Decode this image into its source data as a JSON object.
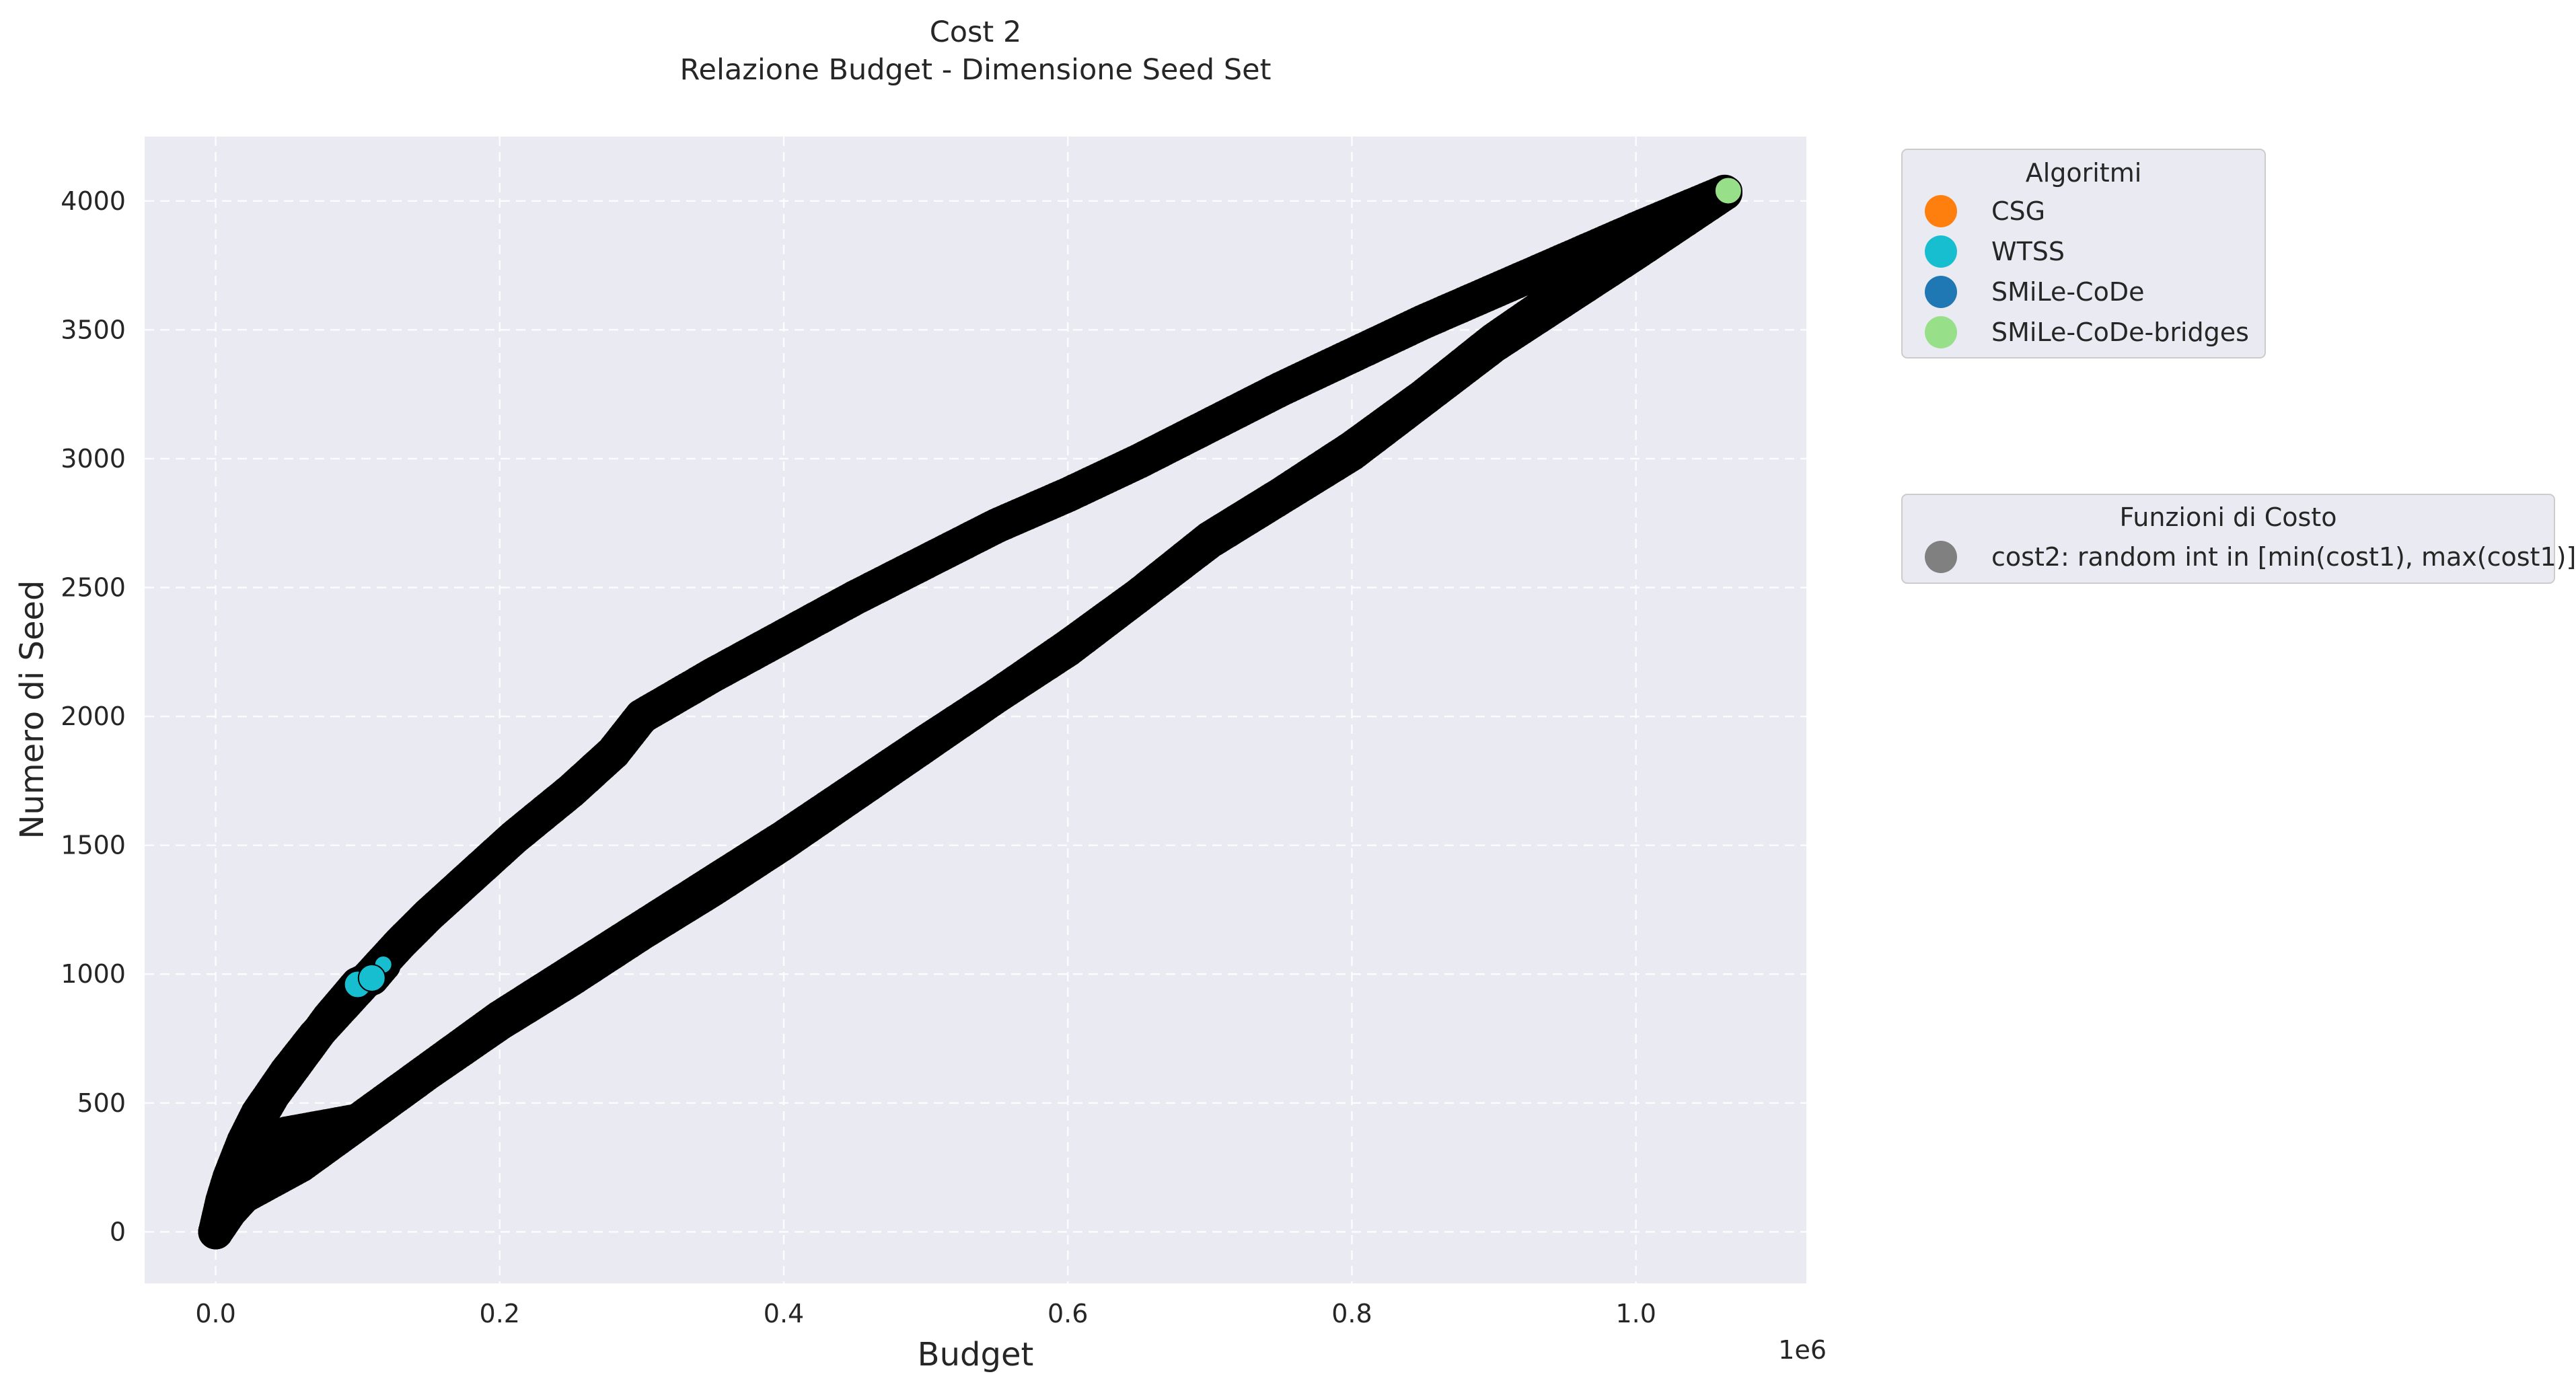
{
  "chart_data": {
    "type": "scatter",
    "title": "Cost 2",
    "subtitle": "Relazione Budget - Dimensione Seed Set",
    "xlabel": "Budget",
    "ylabel": "Numero di Seed",
    "x_offset_label": "1e6",
    "xlim": [
      -0.05,
      1.12
    ],
    "ylim": [
      -200,
      4250
    ],
    "x_ticks": [
      0.0,
      0.2,
      0.4,
      0.6,
      0.8,
      1.0
    ],
    "x_tick_labels": [
      "0.0",
      "0.2",
      "0.4",
      "0.6",
      "0.8",
      "1.0"
    ],
    "y_ticks": [
      0,
      500,
      1000,
      1500,
      2000,
      2500,
      3000,
      3500,
      4000
    ],
    "y_tick_labels": [
      "0",
      "500",
      "1000",
      "1500",
      "2000",
      "2500",
      "3000",
      "3500",
      "4000"
    ],
    "grid": true,
    "point_edge_color": "#000000",
    "background_color": "#eaeaf2",
    "series": [
      {
        "name": "CSG",
        "color": "#ff7f0e",
        "x": [
          0.0,
          0.005,
          0.01,
          0.02,
          0.03,
          0.05,
          0.07,
          0.09,
          0.11,
          0.13,
          0.15,
          0.18,
          0.21,
          0.25,
          0.28,
          0.3,
          0.35,
          0.4,
          0.45,
          0.5,
          0.55,
          0.6,
          0.65,
          0.7,
          0.75,
          0.8,
          0.85,
          0.9,
          0.95,
          1.0,
          1.065
        ],
        "y": [
          0,
          120,
          210,
          350,
          460,
          620,
          760,
          880,
          1000,
          1120,
          1230,
          1380,
          1530,
          1710,
          1860,
          2000,
          2160,
          2310,
          2460,
          2600,
          2740,
          2860,
          2990,
          3130,
          3270,
          3400,
          3530,
          3650,
          3770,
          3890,
          4040
        ]
      },
      {
        "name": "WTSS",
        "color": "#17becf",
        "x": [
          0.0,
          0.01,
          0.02,
          0.04,
          0.06,
          0.08,
          0.1,
          0.11,
          0.12
        ],
        "y": [
          0,
          200,
          340,
          530,
          680,
          830,
          960,
          985,
          1050
        ]
      },
      {
        "name": "SMiLe-CoDe",
        "color": "#1f77b4",
        "x": [
          0.0,
          0.01,
          0.02,
          0.03,
          0.04,
          0.05,
          0.1,
          0.2,
          0.3,
          0.4,
          0.5,
          0.6,
          0.7,
          0.8,
          0.9,
          0.95,
          1.0,
          1.065
        ],
        "y": [
          0,
          100,
          170,
          230,
          300,
          380,
          430,
          830,
          1180,
          1530,
          1900,
          2260,
          2680,
          3020,
          3440,
          3620,
          3800,
          4040
        ]
      },
      {
        "name": "SMiLe-CoDe-bridges",
        "color": "#98df8a",
        "x": [
          0.0,
          0.01,
          0.02,
          0.04,
          0.06,
          0.1,
          0.15,
          0.2,
          0.25,
          0.3,
          0.35,
          0.4,
          0.45,
          0.5,
          0.55,
          0.6,
          0.65,
          0.7,
          0.75,
          0.8,
          0.85,
          0.9,
          0.95,
          1.0,
          1.065
        ],
        "y": [
          0,
          80,
          140,
          200,
          260,
          420,
          620,
          810,
          980,
          1160,
          1330,
          1510,
          1700,
          1890,
          2080,
          2270,
          2470,
          2690,
          2860,
          3040,
          3240,
          3460,
          3650,
          3860,
          4040
        ]
      }
    ],
    "legends": [
      {
        "title": "Algoritmi",
        "placement": "outside-upper-right",
        "entries": [
          {
            "label": "CSG",
            "color": "#ff7f0e"
          },
          {
            "label": "WTSS",
            "color": "#17becf"
          },
          {
            "label": "SMiLe-CoDe",
            "color": "#1f77b4"
          },
          {
            "label": "SMiLe-CoDe-bridges",
            "color": "#98df8a"
          }
        ]
      },
      {
        "title": "Funzioni di Costo",
        "placement": "outside-right",
        "entries": [
          {
            "label": "cost2: random int in [min(cost1), max(cost1)]",
            "color": "#808080"
          }
        ]
      }
    ]
  }
}
